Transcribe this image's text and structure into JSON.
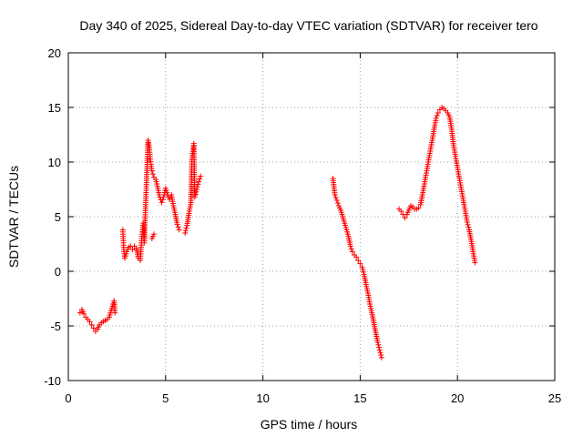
{
  "chart_data": {
    "type": "scatter",
    "title": "Day 340 of 2025, Sidereal Day-to-day VTEC variation (SDTVAR) for receiver tero",
    "xlabel": "GPS time / hours",
    "ylabel": "SDTVAR / TECUs",
    "xlim": [
      0,
      25
    ],
    "ylim": [
      -10,
      20
    ],
    "xticks": [
      "0",
      "5",
      "10",
      "15",
      "20",
      "25"
    ],
    "yticks": [
      "-10",
      "-5",
      "0",
      "5",
      "10",
      "15",
      "20"
    ],
    "grid": true,
    "marker": "plus",
    "color": "#ff0000",
    "series": [
      {
        "x": [
          0.6,
          0.7,
          0.8,
          0.9,
          1.0,
          1.1,
          1.2,
          1.3,
          1.4,
          1.5,
          1.6,
          1.7,
          1.8,
          1.9,
          2.0,
          2.1,
          2.2,
          2.3,
          2.35,
          2.4
        ],
        "y": [
          -3.8,
          -3.5,
          -3.9,
          -4.2,
          -4.4,
          -4.6,
          -4.9,
          -5.2,
          -5.5,
          -5.3,
          -4.9,
          -4.7,
          -4.6,
          -4.5,
          -4.4,
          -4.2,
          -3.6,
          -3.0,
          -2.7,
          -3.8
        ]
      },
      {
        "x": [
          2.8,
          2.85,
          2.9,
          3.0,
          3.1,
          3.2,
          3.3,
          3.4,
          3.5,
          3.6,
          3.7,
          3.75,
          3.8,
          3.85,
          3.9,
          4.1,
          4.15,
          4.2,
          4.25,
          4.3,
          4.35,
          4.4,
          4.5,
          4.6,
          4.7,
          4.8,
          4.9,
          5.0,
          5.1,
          5.2,
          5.3,
          5.4,
          5.5,
          5.6,
          5.7
        ],
        "y": [
          3.8,
          2.0,
          1.2,
          1.8,
          2.2,
          2.3,
          2.0,
          2.3,
          2.1,
          1.2,
          1.0,
          2.4,
          3.6,
          4.4,
          2.6,
          12.0,
          11.5,
          10.5,
          9.8,
          9.2,
          8.9,
          8.6,
          8.4,
          7.6,
          6.8,
          6.3,
          6.8,
          7.6,
          7.0,
          6.6,
          7.0,
          6.0,
          5.2,
          4.3,
          3.8
        ]
      },
      {
        "x": [
          4.3,
          4.4
        ],
        "y": [
          3.0,
          3.4
        ]
      },
      {
        "x": [
          6.0,
          6.1,
          6.2,
          6.3,
          6.35,
          6.4,
          6.45,
          6.5,
          6.6,
          6.7,
          6.8
        ],
        "y": [
          3.5,
          4.2,
          5.3,
          6.3,
          10.2,
          11.0,
          11.7,
          6.8,
          7.5,
          8.2,
          8.7
        ]
      },
      {
        "x": [
          13.6,
          13.7,
          13.8,
          13.9,
          14.0,
          14.1,
          14.2,
          14.3,
          14.4,
          14.5,
          14.6,
          14.7,
          14.8,
          14.9,
          15.0,
          15.1,
          15.2,
          15.3,
          15.4,
          15.5,
          15.6,
          15.7,
          15.8,
          15.9,
          16.0,
          16.1
        ],
        "y": [
          8.5,
          7.0,
          6.5,
          6.0,
          5.6,
          5.0,
          4.4,
          3.8,
          3.2,
          2.3,
          1.8,
          1.5,
          1.3,
          1.0,
          0.7,
          0.4,
          -0.3,
          -1.2,
          -2.0,
          -3.0,
          -3.8,
          -4.7,
          -5.6,
          -6.5,
          -7.2,
          -7.9
        ]
      },
      {
        "x": [
          17.0,
          17.1,
          17.2,
          17.3,
          17.4,
          17.5,
          17.6,
          17.7,
          17.8,
          17.9,
          18.0,
          18.1,
          18.2,
          18.3,
          18.4,
          18.5,
          18.6,
          18.7,
          18.8,
          18.9,
          19.0,
          19.1,
          19.2,
          19.3,
          19.4,
          19.5,
          19.6,
          19.7,
          19.8,
          19.9,
          20.0,
          20.1,
          20.2,
          20.3,
          20.4,
          20.5,
          20.6,
          20.7,
          20.8,
          20.9
        ],
        "y": [
          5.7,
          5.5,
          5.2,
          4.9,
          5.2,
          5.6,
          6.0,
          5.9,
          5.7,
          5.7,
          5.8,
          6.1,
          7.0,
          8.0,
          9.0,
          10.0,
          11.0,
          12.0,
          13.0,
          14.0,
          14.5,
          14.8,
          15.0,
          14.9,
          14.7,
          14.5,
          14.1,
          13.0,
          11.5,
          10.5,
          9.5,
          8.5,
          7.5,
          6.5,
          5.5,
          4.5,
          3.8,
          2.9,
          1.8,
          0.8
        ]
      }
    ]
  }
}
